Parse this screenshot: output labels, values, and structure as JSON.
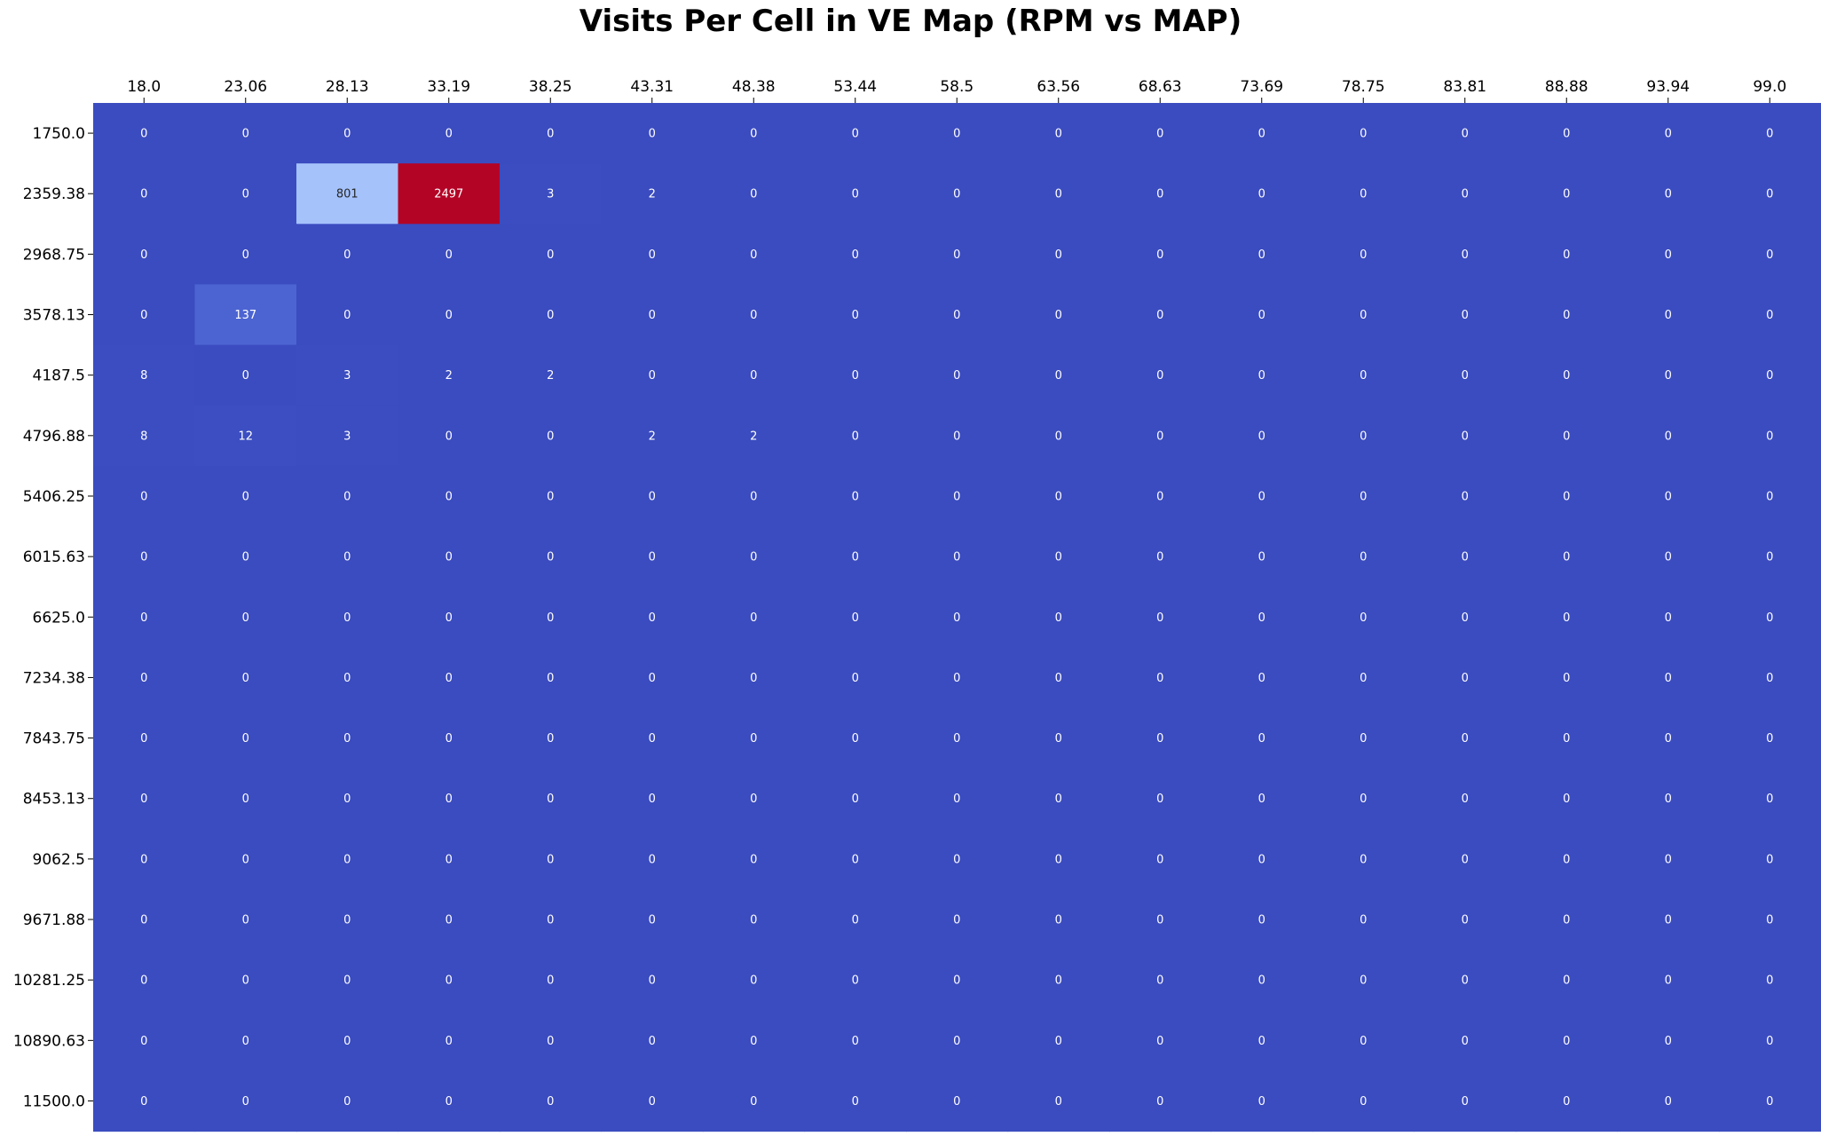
{
  "chart_data": {
    "type": "heatmap",
    "title": "Visits Per Cell in VE Map (RPM vs MAP)",
    "xlabel": "",
    "ylabel": "",
    "x_tick_position": "top",
    "colormap": "coolwarm",
    "color_range": [
      0,
      2497
    ],
    "x": [
      "18.0",
      "23.06",
      "28.13",
      "33.19",
      "38.25",
      "43.31",
      "48.38",
      "53.44",
      "58.5",
      "63.56",
      "68.63",
      "73.69",
      "78.75",
      "83.81",
      "88.88",
      "93.94",
      "99.0"
    ],
    "y": [
      "1750.0",
      "2359.38",
      "2968.75",
      "3578.13",
      "4187.5",
      "4796.88",
      "5406.25",
      "6015.63",
      "6625.0",
      "7234.38",
      "7843.75",
      "8453.13",
      "9062.5",
      "9671.88",
      "10281.25",
      "10890.63",
      "11500.0"
    ],
    "values": [
      [
        0,
        0,
        0,
        0,
        0,
        0,
        0,
        0,
        0,
        0,
        0,
        0,
        0,
        0,
        0,
        0,
        0
      ],
      [
        0,
        0,
        801,
        2497,
        3,
        2,
        0,
        0,
        0,
        0,
        0,
        0,
        0,
        0,
        0,
        0,
        0
      ],
      [
        0,
        0,
        0,
        0,
        0,
        0,
        0,
        0,
        0,
        0,
        0,
        0,
        0,
        0,
        0,
        0,
        0
      ],
      [
        0,
        137,
        0,
        0,
        0,
        0,
        0,
        0,
        0,
        0,
        0,
        0,
        0,
        0,
        0,
        0,
        0
      ],
      [
        8,
        0,
        3,
        2,
        2,
        0,
        0,
        0,
        0,
        0,
        0,
        0,
        0,
        0,
        0,
        0,
        0
      ],
      [
        8,
        12,
        3,
        0,
        0,
        2,
        2,
        0,
        0,
        0,
        0,
        0,
        0,
        0,
        0,
        0,
        0
      ],
      [
        0,
        0,
        0,
        0,
        0,
        0,
        0,
        0,
        0,
        0,
        0,
        0,
        0,
        0,
        0,
        0,
        0
      ],
      [
        0,
        0,
        0,
        0,
        0,
        0,
        0,
        0,
        0,
        0,
        0,
        0,
        0,
        0,
        0,
        0,
        0
      ],
      [
        0,
        0,
        0,
        0,
        0,
        0,
        0,
        0,
        0,
        0,
        0,
        0,
        0,
        0,
        0,
        0,
        0
      ],
      [
        0,
        0,
        0,
        0,
        0,
        0,
        0,
        0,
        0,
        0,
        0,
        0,
        0,
        0,
        0,
        0,
        0
      ],
      [
        0,
        0,
        0,
        0,
        0,
        0,
        0,
        0,
        0,
        0,
        0,
        0,
        0,
        0,
        0,
        0,
        0
      ],
      [
        0,
        0,
        0,
        0,
        0,
        0,
        0,
        0,
        0,
        0,
        0,
        0,
        0,
        0,
        0,
        0,
        0
      ],
      [
        0,
        0,
        0,
        0,
        0,
        0,
        0,
        0,
        0,
        0,
        0,
        0,
        0,
        0,
        0,
        0,
        0
      ],
      [
        0,
        0,
        0,
        0,
        0,
        0,
        0,
        0,
        0,
        0,
        0,
        0,
        0,
        0,
        0,
        0,
        0
      ],
      [
        0,
        0,
        0,
        0,
        0,
        0,
        0,
        0,
        0,
        0,
        0,
        0,
        0,
        0,
        0,
        0,
        0
      ],
      [
        0,
        0,
        0,
        0,
        0,
        0,
        0,
        0,
        0,
        0,
        0,
        0,
        0,
        0,
        0,
        0,
        0
      ],
      [
        0,
        0,
        0,
        0,
        0,
        0,
        0,
        0,
        0,
        0,
        0,
        0,
        0,
        0,
        0,
        0,
        0
      ]
    ]
  }
}
